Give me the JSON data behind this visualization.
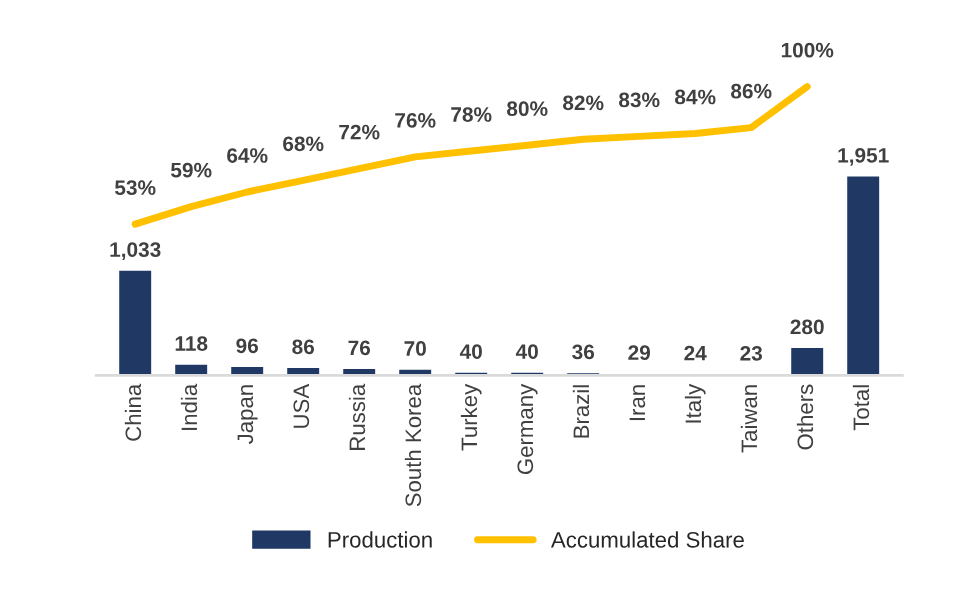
{
  "chart_data": {
    "type": "bar",
    "categories": [
      "China",
      "India",
      "Japan",
      "USA",
      "Russia",
      "South Korea",
      "Turkey",
      "Germany",
      "Brazil",
      "Iran",
      "Italy",
      "Taiwan",
      "Others",
      "Total"
    ],
    "series": [
      {
        "name": "Production",
        "color": "#203864",
        "values": [
          1033,
          118,
          96,
          86,
          76,
          70,
          40,
          40,
          36,
          29,
          24,
          23,
          280,
          1951
        ],
        "value_labels": [
          "1,033",
          "118",
          "96",
          "86",
          "76",
          "70",
          "40",
          "40",
          "36",
          "29",
          "24",
          "23",
          "280",
          "1,951"
        ]
      },
      {
        "name": "Accumulated Share",
        "type": "line",
        "axis": "y2",
        "color": "#ffc000",
        "values": [
          53,
          59,
          64,
          68,
          72,
          76,
          78,
          80,
          82,
          83,
          84,
          86,
          100,
          null
        ],
        "value_labels": [
          "53%",
          "59%",
          "64%",
          "68%",
          "72%",
          "76%",
          "78%",
          "80%",
          "82%",
          "83%",
          "84%",
          "86%",
          "100%",
          null
        ]
      }
    ],
    "tick_labels": "x",
    "grid": false,
    "legend": "bottom",
    "marker": "none",
    "line_style": "solid"
  }
}
